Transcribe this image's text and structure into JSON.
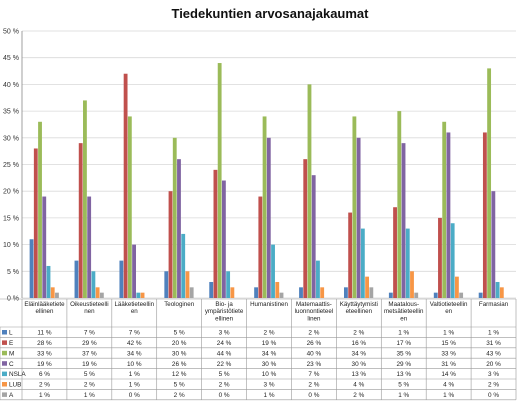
{
  "chart_data": {
    "type": "bar",
    "title": "Tiedekuntien arvosanajakaumat",
    "ylim": [
      0,
      50
    ],
    "y_ticks": [
      "0 %",
      "5 %",
      "10 %",
      "15 %",
      "20 %",
      "25 %",
      "30 %",
      "35 %",
      "40 %",
      "45 %",
      "50 %"
    ],
    "grid": true,
    "legend_placement": "data-table-left",
    "categories": [
      [
        "Eläinlääketiete",
        "ellinen"
      ],
      [
        "Oikeustieteelli",
        "nen"
      ],
      [
        "Lääketieteellin",
        "en"
      ],
      [
        "Teologinen"
      ],
      [
        "Bio- ja",
        "ympäristötiete",
        "ellinen"
      ],
      [
        "Humanistinen"
      ],
      [
        "Matemaattis-",
        "luonnontieteel",
        "linen"
      ],
      [
        "Käyttäytymisti",
        "eteellinen"
      ],
      [
        "Maatalous-",
        "metsätieteellin",
        "en"
      ],
      [
        "Valtiotieteellin",
        "en"
      ],
      [
        "Farmasian"
      ]
    ],
    "series": [
      {
        "name": "L",
        "color": "#4f81bd",
        "values": [
          11,
          7,
          7,
          5,
          3,
          2,
          2,
          2,
          1,
          1,
          1
        ]
      },
      {
        "name": "E",
        "color": "#c0504d",
        "values": [
          28,
          29,
          42,
          20,
          24,
          19,
          26,
          16,
          17,
          15,
          31
        ]
      },
      {
        "name": "M",
        "color": "#9bbb59",
        "values": [
          33,
          37,
          34,
          30,
          44,
          34,
          40,
          34,
          35,
          33,
          43
        ]
      },
      {
        "name": "C",
        "color": "#8064a2",
        "values": [
          19,
          19,
          10,
          26,
          22,
          30,
          23,
          30,
          29,
          31,
          20
        ]
      },
      {
        "name": "NSLA",
        "color": "#4bacc6",
        "values": [
          6,
          5,
          1,
          12,
          5,
          10,
          7,
          13,
          13,
          14,
          3
        ]
      },
      {
        "name": "LUB",
        "color": "#f79646",
        "values": [
          2,
          2,
          1,
          5,
          2,
          3,
          2,
          4,
          5,
          4,
          2
        ]
      },
      {
        "name": "A",
        "color": "#a5a5a5",
        "values": [
          1,
          1,
          0,
          2,
          0,
          1,
          0,
          2,
          1,
          1,
          0
        ]
      }
    ]
  }
}
